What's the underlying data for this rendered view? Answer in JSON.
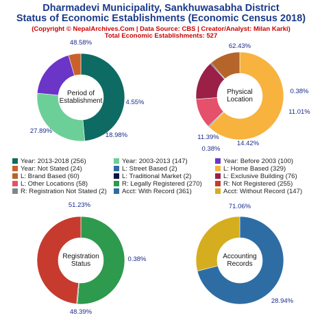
{
  "title_line1": "Dharmadevi Municipality, Sankhuwasabha District",
  "title_line2": "Status of Economic Establishments (Economic Census 2018)",
  "copyright": "(Copyright © NepalArchives.Com | Data Source: CBS | Creator/Analyst: Milan Karki)",
  "total": "Total Economic Establishments: 527",
  "legend": [
    {
      "label": "Year: 2013-2018 (256)",
      "color": "#0d6b64"
    },
    {
      "label": "Year: 2003-2013 (147)",
      "color": "#6ccf97"
    },
    {
      "label": "Year: Before 2003 (100)",
      "color": "#6b35c7"
    },
    {
      "label": "Year: Not Stated (24)",
      "color": "#c9622a"
    },
    {
      "label": "L: Street Based (2)",
      "color": "#2e6da4"
    },
    {
      "label": "L: Home Based (329)",
      "color": "#f7b33d"
    },
    {
      "label": "L: Brand Based (60)",
      "color": "#b5652a"
    },
    {
      "label": "L: Traditional Market (2)",
      "color": "#101540"
    },
    {
      "label": "L: Exclusive Building (76)",
      "color": "#9a2048"
    },
    {
      "label": "L: Other Locations (58)",
      "color": "#e5506a"
    },
    {
      "label": "R: Legally Registered (270)",
      "color": "#2e9a4d"
    },
    {
      "label": "R: Not Registered (255)",
      "color": "#c63b2e"
    },
    {
      "label": "R: Registration Not Stated (2)",
      "color": "#7a8a8a"
    },
    {
      "label": "Acct: With Record (361)",
      "color": "#2e6da4"
    },
    {
      "label": "Acct: Without Record (147)",
      "color": "#d4ae1e"
    }
  ],
  "chart_data": [
    {
      "type": "pie",
      "center_label": [
        "Period of",
        "Establishment"
      ],
      "categories": [
        "Year: 2013-2018",
        "Year: 2003-2013",
        "Year: Before 2003",
        "Year: Not Stated"
      ],
      "values": [
        256,
        147,
        100,
        24
      ],
      "colors": [
        "#0d6b64",
        "#6ccf97",
        "#6b35c7",
        "#c9622a"
      ],
      "pct_labels": [
        "48.58%",
        "27.89%",
        "18.98%",
        "4.55%"
      ]
    },
    {
      "type": "pie",
      "center_label": [
        "Physical",
        "Location"
      ],
      "categories": [
        "L: Home Based",
        "L: Street Based",
        "L: Other Locations",
        "L: Exclusive Building",
        "L: Traditional Market",
        "L: Brand Based"
      ],
      "values": [
        329,
        2,
        58,
        76,
        2,
        60
      ],
      "colors": [
        "#f7b33d",
        "#2e6da4",
        "#e5506a",
        "#9a2048",
        "#101540",
        "#b5652a"
      ],
      "pct_labels": [
        "62.43%",
        "0.38%",
        "11.01%",
        "14.42%",
        "0.38%",
        "11.39%"
      ]
    },
    {
      "type": "pie",
      "center_label": [
        "Registration",
        "Status"
      ],
      "categories": [
        "R: Legally Registered",
        "R: Registration Not Stated",
        "R: Not Registered"
      ],
      "values": [
        270,
        2,
        255
      ],
      "colors": [
        "#2e9a4d",
        "#7a8a8a",
        "#c63b2e"
      ],
      "pct_labels": [
        "51.23%",
        "0.38%",
        "48.39%"
      ]
    },
    {
      "type": "pie",
      "center_label": [
        "Accounting",
        "Records"
      ],
      "categories": [
        "Acct: With Record",
        "Acct: Without Record"
      ],
      "values": [
        361,
        147
      ],
      "colors": [
        "#2e6da4",
        "#d4ae1e"
      ],
      "pct_labels": [
        "71.06%",
        "28.94%"
      ]
    }
  ]
}
